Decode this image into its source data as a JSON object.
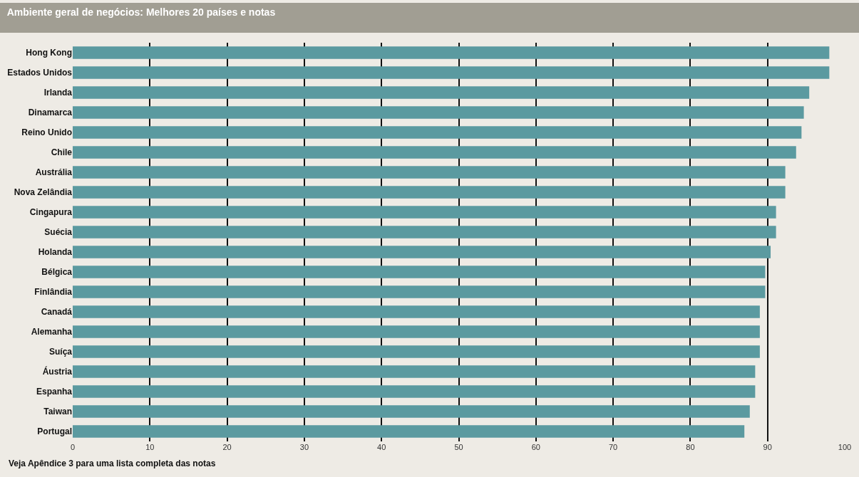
{
  "chart_data": {
    "type": "bar",
    "orientation": "horizontal",
    "title": "Ambiente geral de negócios: Melhores 20 países e notas",
    "categories": [
      "Hong Kong",
      "Estados Unidos",
      "Irlanda",
      "Dinamarca",
      "Reino Unido",
      "Chile",
      "Austrália",
      "Nova Zelândia",
      "Cingapura",
      "Suécia",
      "Holanda",
      "Bélgica",
      "Finlândia",
      "Canadá",
      "Alemanha",
      "Suíça",
      "Áustria",
      "Espanha",
      "Taiwan",
      "Portugal"
    ],
    "values": [
      98.0,
      98.0,
      95.4,
      94.7,
      94.4,
      93.7,
      92.3,
      92.3,
      91.1,
      91.1,
      90.4,
      89.7,
      89.7,
      89.0,
      89.0,
      89.0,
      88.4,
      88.4,
      87.7,
      87.0
    ],
    "color": "#5b9aa0",
    "xlim": [
      0,
      100
    ],
    "xticks": [
      0,
      10,
      20,
      30,
      40,
      50,
      60,
      70,
      80,
      90,
      100
    ],
    "grid": "x",
    "annotations": [
      "Veja Apêndice 3 para uma lista completa das notas"
    ]
  }
}
